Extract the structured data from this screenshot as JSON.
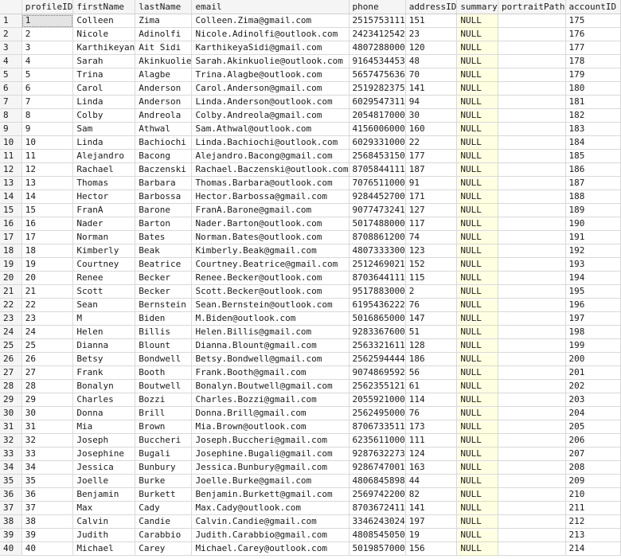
{
  "grid": {
    "columns": [
      "",
      "profileID",
      "firstName",
      "lastName",
      "email",
      "phone",
      "addressID",
      "summary",
      "portraitPath",
      "accountID"
    ],
    "rows": [
      [
        "1",
        "1",
        "Colleen",
        "Zima",
        "Colleen.Zima@gmail.com",
        "2515753111",
        "151",
        "NULL",
        "",
        "175"
      ],
      [
        "2",
        "2",
        "Nicole",
        "Adinolfi",
        "Nicole.Adinolfi@outlook.com",
        "2423412542",
        "23",
        "NULL",
        "",
        "176"
      ],
      [
        "3",
        "3",
        "Karthikeyan",
        "Ait Sidi",
        "KarthikeyaSidi@gmail.com",
        "4807288000",
        "120",
        "NULL",
        "",
        "177"
      ],
      [
        "4",
        "4",
        "Sarah",
        "Akinkuolie",
        "Sarah.Akinkuolie@outlook.com",
        "9164534453",
        "48",
        "NULL",
        "",
        "178"
      ],
      [
        "5",
        "5",
        "Trina",
        "Alagbe",
        "Trina.Alagbe@outlook.com",
        "5657475636",
        "70",
        "NULL",
        "",
        "179"
      ],
      [
        "6",
        "6",
        "Carol",
        "Anderson",
        "Carol.Anderson@gmail.com",
        "2519282375",
        "141",
        "NULL",
        "",
        "180"
      ],
      [
        "7",
        "7",
        "Linda",
        "Anderson",
        "Linda.Anderson@outlook.com",
        "6029547311",
        "94",
        "NULL",
        "",
        "181"
      ],
      [
        "8",
        "8",
        "Colby",
        "Andreola",
        "Colby.Andreola@gmail.com",
        "2054817000",
        "30",
        "NULL",
        "",
        "182"
      ],
      [
        "9",
        "9",
        "Sam",
        "Athwal",
        "Sam.Athwal@outlook.com",
        "4156006000",
        "160",
        "NULL",
        "",
        "183"
      ],
      [
        "10",
        "10",
        "Linda",
        "Bachiochi",
        "Linda.Bachiochi@outlook.com",
        "6029331000",
        "22",
        "NULL",
        "",
        "184"
      ],
      [
        "11",
        "11",
        "Alejandro",
        "Bacong",
        "Alejandro.Bacong@gmail.com",
        "2568453150",
        "177",
        "NULL",
        "",
        "185"
      ],
      [
        "12",
        "12",
        "Rachael",
        "Baczenski",
        "Rachael.Baczenski@outlook.com",
        "8705844111",
        "187",
        "NULL",
        "",
        "186"
      ],
      [
        "13",
        "13",
        "Thomas",
        "Barbara",
        "Thomas.Barbara@outlook.com",
        "7076511000",
        "91",
        "NULL",
        "",
        "187"
      ],
      [
        "14",
        "14",
        "Hector",
        "Barbossa",
        "Hector.Barbossa@gmail.com",
        "9284452700",
        "171",
        "NULL",
        "",
        "188"
      ],
      [
        "15",
        "15",
        "FranA",
        "Barone",
        "FranA.Barone@gmail.com",
        "9077473241",
        "127",
        "NULL",
        "",
        "189"
      ],
      [
        "16",
        "16",
        "Nader",
        "Barton",
        "Nader.Barton@outlook.com",
        "5017488000",
        "117",
        "NULL",
        "",
        "190"
      ],
      [
        "17",
        "17",
        "Norman",
        "Bates",
        "Norman.Bates@outlook.com",
        "8708861200",
        "74",
        "NULL",
        "",
        "191"
      ],
      [
        "18",
        "18",
        "Kimberly",
        "Beak",
        "Kimberly.Beak@gmail.com",
        "4807333300",
        "123",
        "NULL",
        "",
        "192"
      ],
      [
        "19",
        "19",
        "Courtney",
        "Beatrice",
        "Courtney.Beatrice@gmail.com",
        "2512469021",
        "152",
        "NULL",
        "",
        "193"
      ],
      [
        "20",
        "20",
        "Renee",
        "Becker",
        "Renee.Becker@outlook.com",
        "8703644111",
        "115",
        "NULL",
        "",
        "194"
      ],
      [
        "21",
        "21",
        "Scott",
        "Becker",
        "Scott.Becker@outlook.com",
        "9517883000",
        "2",
        "NULL",
        "",
        "195"
      ],
      [
        "22",
        "22",
        "Sean",
        "Bernstein",
        "Sean.Bernstein@outlook.com",
        "6195436222",
        "76",
        "NULL",
        "",
        "196"
      ],
      [
        "23",
        "23",
        "M",
        "Biden",
        "M.Biden@outlook.com",
        "5016865000",
        "147",
        "NULL",
        "",
        "197"
      ],
      [
        "24",
        "24",
        "Helen",
        "Billis",
        "Helen.Billis@gmail.com",
        "9283367600",
        "51",
        "NULL",
        "",
        "198"
      ],
      [
        "25",
        "25",
        "Dianna",
        "Blount",
        "Dianna.Blount@gmail.com",
        "2563321611",
        "128",
        "NULL",
        "",
        "199"
      ],
      [
        "26",
        "26",
        "Betsy",
        "Bondwell",
        "Betsy.Bondwell@gmail.com",
        "2562594444",
        "186",
        "NULL",
        "",
        "200"
      ],
      [
        "27",
        "27",
        "Frank",
        "Booth",
        "Frank.Booth@gmail.com",
        "9074869592",
        "56",
        "NULL",
        "",
        "201"
      ],
      [
        "28",
        "28",
        "Bonalyn",
        "Boutwell",
        "Bonalyn.Boutwell@gmail.com",
        "2562355121",
        "61",
        "NULL",
        "",
        "202"
      ],
      [
        "29",
        "29",
        "Charles",
        "Bozzi",
        "Charles.Bozzi@gmail.com",
        "2055921000",
        "114",
        "NULL",
        "",
        "203"
      ],
      [
        "30",
        "30",
        "Donna",
        "Brill",
        "Donna.Brill@gmail.com",
        "2562495000",
        "76",
        "NULL",
        "",
        "204"
      ],
      [
        "31",
        "31",
        "Mia",
        "Brown",
        "Mia.Brown@outlook.com",
        "8706733511",
        "173",
        "NULL",
        "",
        "205"
      ],
      [
        "32",
        "32",
        "Joseph",
        "Buccheri",
        "Joseph.Buccheri@gmail.com",
        "6235611000",
        "111",
        "NULL",
        "",
        "206"
      ],
      [
        "33",
        "33",
        "Josephine",
        "Bugali",
        "Josephine.Bugali@gmail.com",
        "9287632273",
        "124",
        "NULL",
        "",
        "207"
      ],
      [
        "34",
        "34",
        "Jessica",
        "Bunbury",
        "Jessica.Bunbury@gmail.com",
        "9286747001",
        "163",
        "NULL",
        "",
        "208"
      ],
      [
        "35",
        "35",
        "Joelle",
        "Burke",
        "Joelle.Burke@gmail.com",
        "4806845898",
        "44",
        "NULL",
        "",
        "209"
      ],
      [
        "36",
        "36",
        "Benjamin",
        "Burkett",
        "Benjamin.Burkett@gmail.com",
        "2569742200",
        "82",
        "NULL",
        "",
        "210"
      ],
      [
        "37",
        "37",
        "Max",
        "Cady",
        "Max.Cady@outlook.com",
        "8703672411",
        "141",
        "NULL",
        "",
        "211"
      ],
      [
        "38",
        "38",
        "Calvin",
        "Candie",
        "Calvin.Candie@gmail.com",
        "3346243024",
        "197",
        "NULL",
        "",
        "212"
      ],
      [
        "39",
        "39",
        "Judith",
        "Carabbio",
        "Judith.Carabbio@gmail.com",
        "4808545050",
        "19",
        "NULL",
        "",
        "213"
      ],
      [
        "40",
        "40",
        "Michael",
        "Carey",
        "Michael.Carey@outlook.com",
        "5019857000",
        "156",
        "NULL",
        "",
        "214"
      ]
    ],
    "selected_cell": {
      "row": 0,
      "col": 1
    },
    "null_column": 7,
    "colors": {
      "header_bg": "#f5f5f5",
      "null_bg": "#ffffe1",
      "selected_bg": "#e4e4e4",
      "gridline": "#d9d9d9"
    }
  }
}
